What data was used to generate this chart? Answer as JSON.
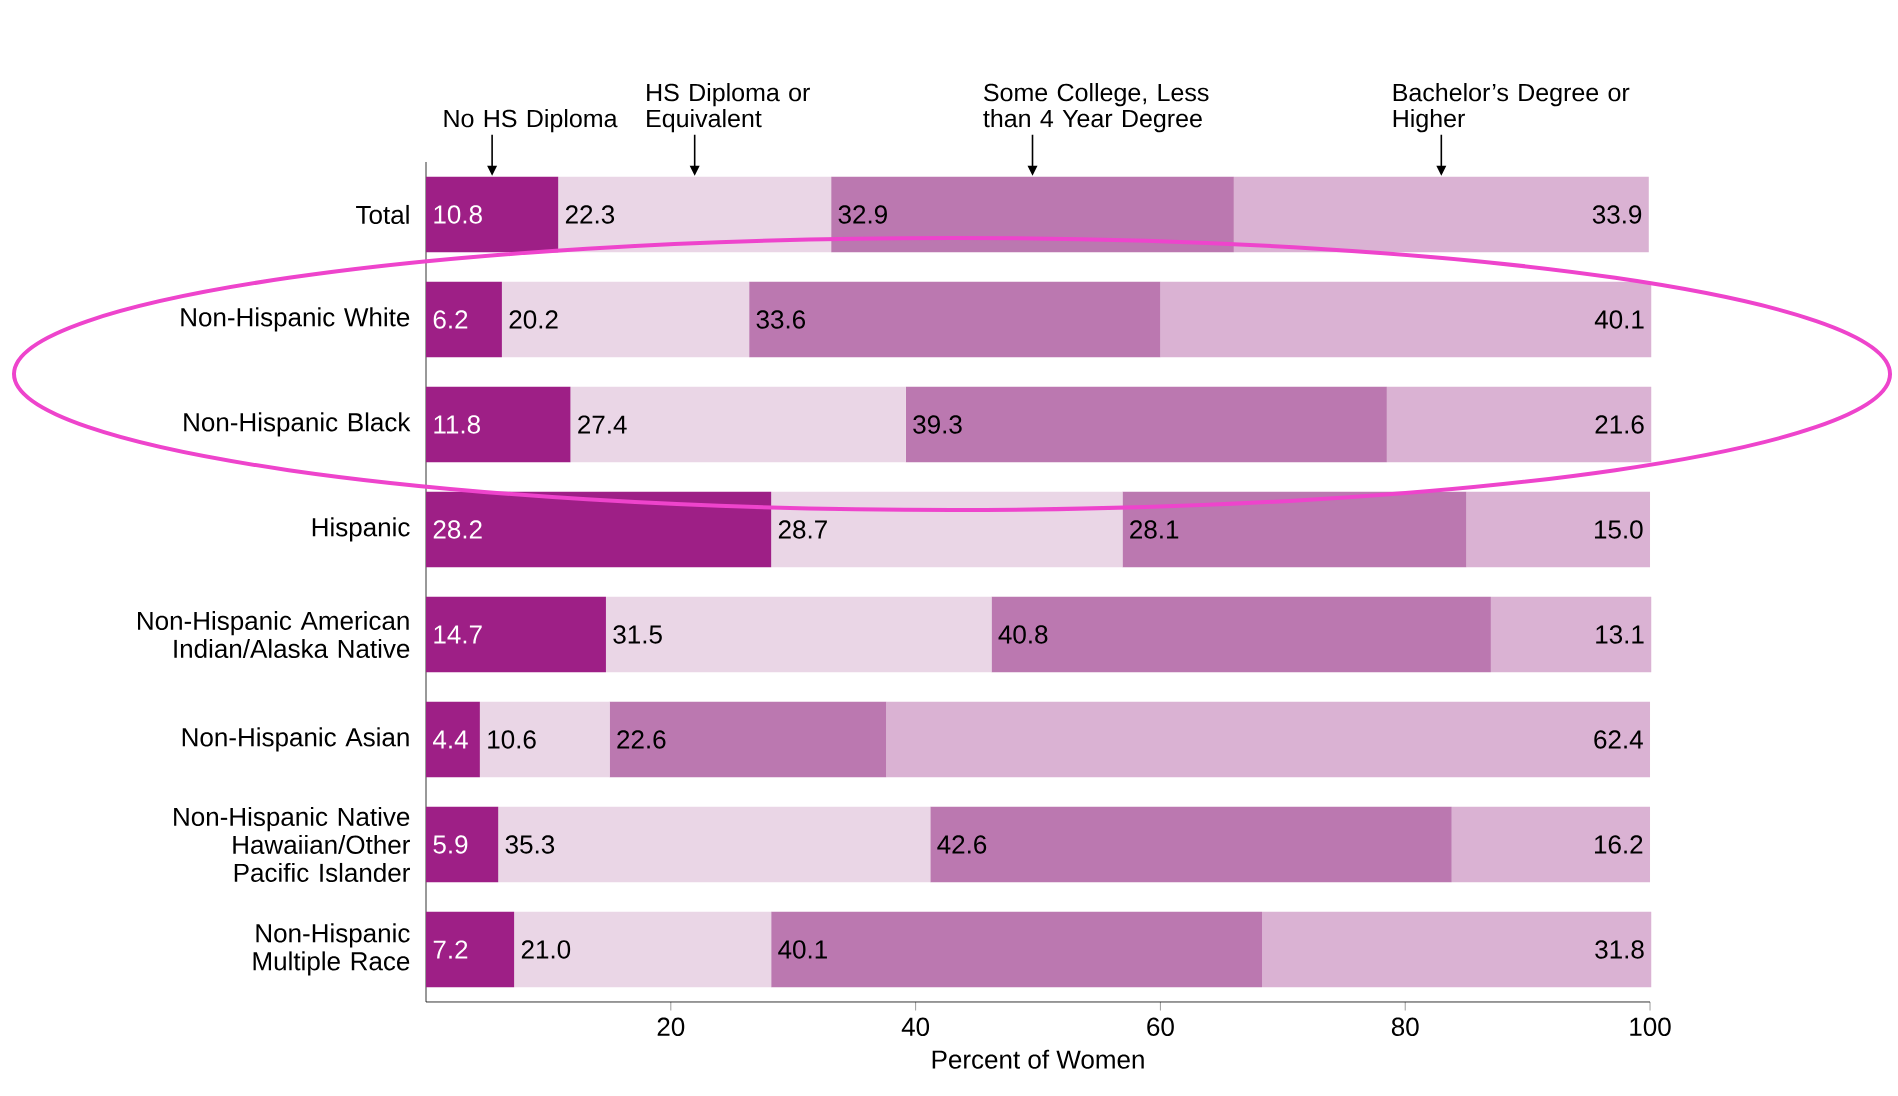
{
  "chart_data": {
    "type": "bar",
    "orientation": "horizontal",
    "stacked": true,
    "xlabel": "Percent of Women",
    "categories": [
      "Total",
      "Non-Hispanic White",
      "Non-Hispanic Black",
      "Hispanic",
      "Non-Hispanic American Indian/Alaska Native",
      "Non-Hispanic Asian",
      "Non-Hispanic Native Hawaiian/Other Pacific Islander",
      "Non-Hispanic Multiple Race"
    ],
    "series": [
      {
        "name": "No HS Diploma",
        "color": "#9e1f86",
        "values": [
          10.8,
          6.2,
          11.8,
          28.2,
          14.7,
          4.4,
          5.9,
          7.2
        ],
        "value_labels": [
          "10.8",
          "6.2",
          "11.8",
          "28.2",
          "14.7",
          "4.4",
          "5.9",
          "7.2"
        ]
      },
      {
        "name": "HS Diploma or Equivalent",
        "color": "#ead6e6",
        "values": [
          22.3,
          20.2,
          27.4,
          28.7,
          31.5,
          10.6,
          35.3,
          21.0
        ],
        "value_labels": [
          "22.3",
          "20.2",
          "27.4",
          "28.7",
          "31.5",
          "10.6",
          "35.3",
          "21.0"
        ]
      },
      {
        "name": "Some College, Less than 4 Year Degree",
        "color": "#bb78b0",
        "values": [
          32.9,
          33.6,
          39.3,
          28.1,
          40.8,
          22.6,
          42.6,
          40.1
        ],
        "value_labels": [
          "32.9",
          "33.6",
          "39.3",
          "28.1",
          "40.8",
          "22.6",
          "42.6",
          "40.1"
        ]
      },
      {
        "name": "Bachelor’s Degree or Higher",
        "color": "#dab2d3",
        "values": [
          33.9,
          40.1,
          21.6,
          15.0,
          13.1,
          62.4,
          16.2,
          31.8
        ],
        "value_labels": [
          "33.9",
          "40.1",
          "21.6",
          "15.0",
          "13.1",
          "62.4",
          "16.2",
          "31.8"
        ]
      }
    ],
    "xlim": [
      0,
      100
    ],
    "xticks": [
      20,
      40,
      60,
      80,
      100
    ]
  }
}
